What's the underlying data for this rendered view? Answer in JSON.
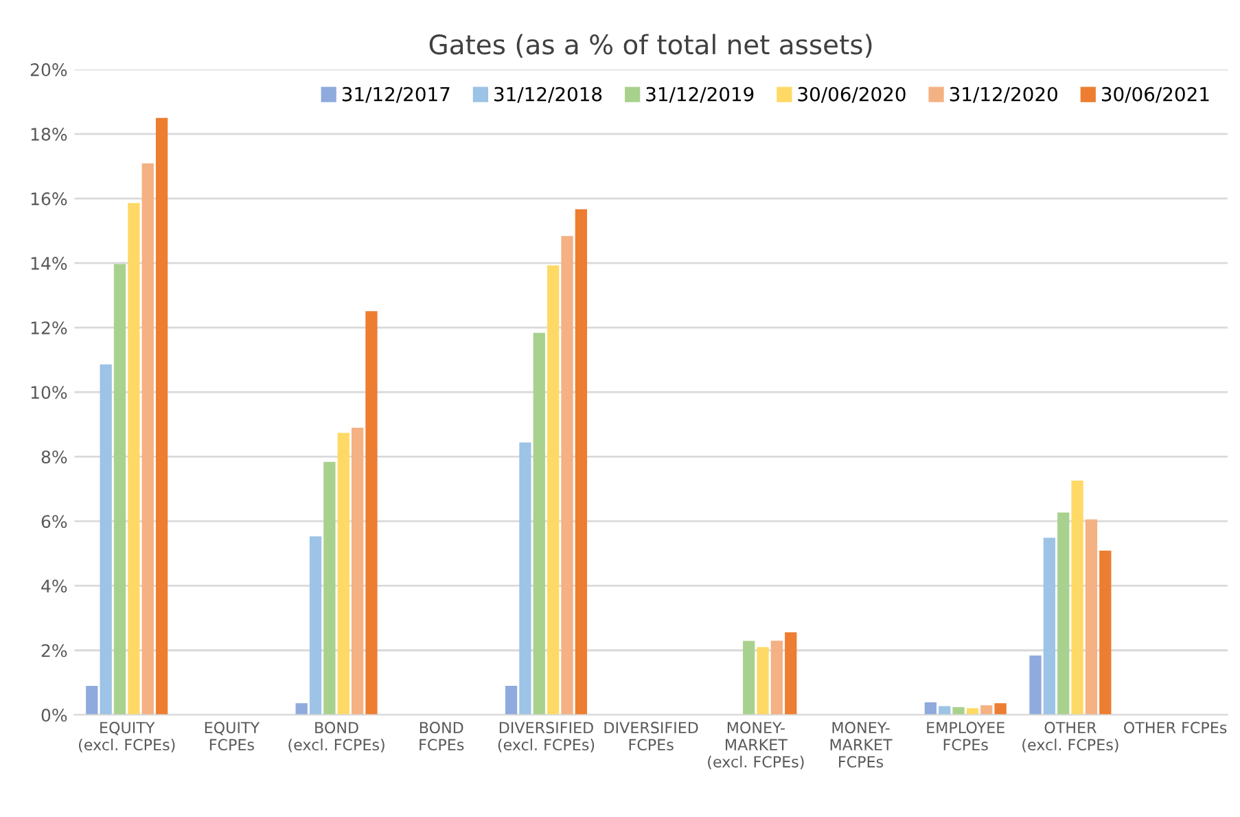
{
  "chart_data": {
    "type": "bar",
    "title": "Gates (as a % of total net assets)",
    "categories": [
      "EQUITY\n(excl. FCPEs)",
      "EQUITY\nFCPEs",
      "BOND\n(excl. FCPEs)",
      "BOND\nFCPEs",
      "DIVERSIFIED\n(excl. FCPEs)",
      "DIVERSIFIED\nFCPEs",
      "MONEY-\nMARKET\n(excl. FCPEs)",
      "MONEY-\nMARKET\nFCPEs",
      "EMPLOYEE\nFCPEs",
      "OTHER\n(excl. FCPEs)",
      "OTHER FCPEs"
    ],
    "series": [
      {
        "name": "31/12/2017",
        "color": "#8faadc",
        "values": [
          0.9,
          null,
          0.36,
          null,
          0.9,
          null,
          null,
          null,
          0.39,
          1.84,
          null
        ]
      },
      {
        "name": "31/12/2018",
        "color": "#9dc3e6",
        "values": [
          10.86,
          null,
          5.53,
          null,
          8.44,
          null,
          null,
          null,
          0.27,
          5.49,
          null
        ]
      },
      {
        "name": "31/12/2019",
        "color": "#a9d18e",
        "values": [
          13.97,
          null,
          7.84,
          null,
          11.84,
          null,
          2.29,
          null,
          0.24,
          6.27,
          null
        ]
      },
      {
        "name": "30/06/2020",
        "color": "#ffd966",
        "values": [
          15.86,
          null,
          8.74,
          null,
          13.93,
          null,
          2.1,
          null,
          0.21,
          7.26,
          null
        ]
      },
      {
        "name": "31/12/2020",
        "color": "#f4b183",
        "values": [
          17.09,
          null,
          8.9,
          null,
          14.84,
          null,
          2.3,
          null,
          0.3,
          6.06,
          null
        ]
      },
      {
        "name": "30/06/2021",
        "color": "#ed7d31",
        "values": [
          18.5,
          null,
          12.51,
          null,
          15.67,
          null,
          2.56,
          null,
          0.36,
          5.09,
          null
        ]
      }
    ],
    "ylim": [
      0,
      20
    ],
    "yticks": [
      {
        "value": 0,
        "label": "0%"
      },
      {
        "value": 2,
        "label": "2%"
      },
      {
        "value": 4,
        "label": "4%"
      },
      {
        "value": 6,
        "label": "6%"
      },
      {
        "value": 8,
        "label": "8%"
      },
      {
        "value": 10,
        "label": "10%"
      },
      {
        "value": 12,
        "label": "12%"
      },
      {
        "value": 14,
        "label": "14%"
      },
      {
        "value": 16,
        "label": "16%"
      },
      {
        "value": 18,
        "label": "18%"
      },
      {
        "value": 20,
        "label": "20%"
      }
    ],
    "grid": "y",
    "legend": "top right"
  }
}
